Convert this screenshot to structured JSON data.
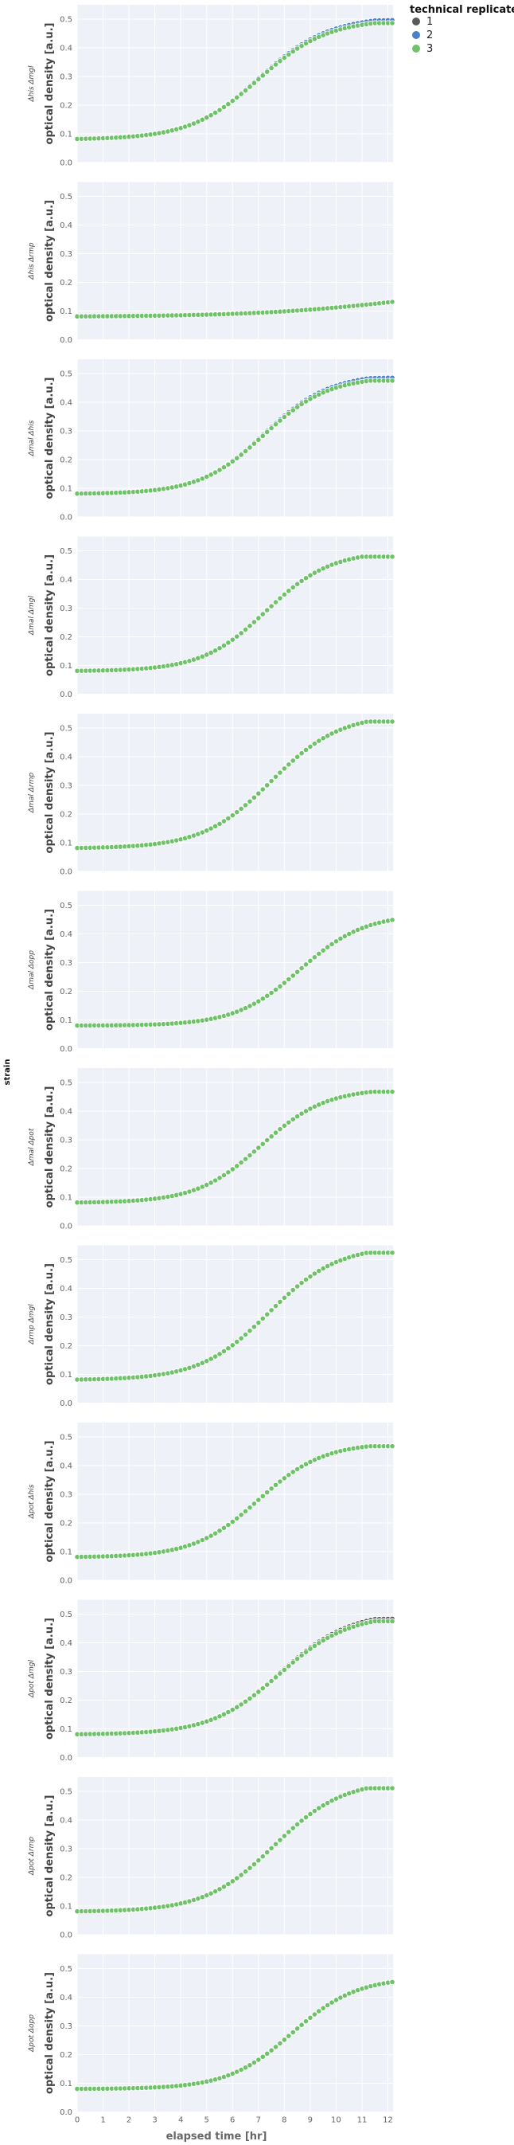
{
  "chart_data": {
    "type": "scatter",
    "xlabel": "elapsed time [hr]",
    "ylabel": "optical density [a.u.]",
    "row_facet_label": "strain",
    "xlim": [
      0,
      12.2
    ],
    "ylim": [
      0,
      0.55
    ],
    "x_ticks": [
      0,
      1,
      2,
      3,
      4,
      5,
      6,
      7,
      8,
      9,
      10,
      11,
      12
    ],
    "y_ticks": [
      0.0,
      0.1,
      0.2,
      0.3,
      0.4,
      0.5
    ],
    "y_tick_labels": [
      "0.0",
      "0.1",
      "0.2",
      "0.3",
      "0.4",
      "0.5"
    ],
    "grid": true,
    "legend": {
      "title": "technical replicate",
      "position": "top-right",
      "entries": [
        {
          "name": "1",
          "color": "#5a5a5a"
        },
        {
          "name": "2",
          "color": "#4a7fc9"
        },
        {
          "name": "3",
          "color": "#6fc26a"
        }
      ]
    },
    "sampling_interval_hr": 0.1667,
    "panels": [
      {
        "strain": "Δhis Δmgl",
        "params": {
          "base": 0.08,
          "K": 0.5,
          "mid": 7.0,
          "rate": 0.75,
          "plateau_start": 11.5
        },
        "replicate_offsets": [
          0.005,
          0.01,
          0.0
        ]
      },
      {
        "strain": "Δhis Δrmp",
        "params": {
          "base": 0.08,
          "K": 0.19,
          "mid": 12.5,
          "rate": 0.35,
          "plateau_start": 13.0
        },
        "replicate_offsets": [
          0.0,
          0.0,
          0.0
        ]
      },
      {
        "strain": "Δmal Δhis",
        "params": {
          "base": 0.08,
          "K": 0.49,
          "mid": 7.2,
          "rate": 0.8,
          "plateau_start": 11.3
        },
        "replicate_offsets": [
          0.005,
          0.01,
          0.0
        ]
      },
      {
        "strain": "Δmal Δmgl",
        "params": {
          "base": 0.08,
          "K": 0.5,
          "mid": 7.3,
          "rate": 0.8,
          "plateau_start": 11.0
        },
        "replicate_offsets": [
          0.0,
          0.0,
          0.0
        ]
      },
      {
        "strain": "Δmal Δrmp",
        "params": {
          "base": 0.08,
          "K": 0.55,
          "mid": 7.5,
          "rate": 0.75,
          "plateau_start": 11.2
        },
        "replicate_offsets": [
          0.0,
          0.0,
          0.0
        ]
      },
      {
        "strain": "Δmal Δopp",
        "params": {
          "base": 0.08,
          "K": 0.47,
          "mid": 8.6,
          "rate": 0.8,
          "plateau_start": 13.0
        },
        "replicate_offsets": [
          0.0,
          0.0,
          0.0
        ]
      },
      {
        "strain": "Δmal Δpot",
        "params": {
          "base": 0.08,
          "K": 0.48,
          "mid": 7.1,
          "rate": 0.8,
          "plateau_start": 11.4
        },
        "replicate_offsets": [
          0.0,
          0.0,
          0.0
        ]
      },
      {
        "strain": "Δrmp Δmgl",
        "params": {
          "base": 0.08,
          "K": 0.55,
          "mid": 7.4,
          "rate": 0.75,
          "plateau_start": 11.2
        },
        "replicate_offsets": [
          0.0,
          0.0,
          0.0
        ]
      },
      {
        "strain": "Δpot Δhis",
        "params": {
          "base": 0.08,
          "K": 0.48,
          "mid": 7.0,
          "rate": 0.8,
          "plateau_start": 11.3
        },
        "replicate_offsets": [
          0.0,
          0.0,
          0.0
        ]
      },
      {
        "strain": "Δpot Δmgl",
        "params": {
          "base": 0.08,
          "K": 0.5,
          "mid": 7.8,
          "rate": 0.75,
          "plateau_start": 11.5
        },
        "replicate_offsets": [
          0.008,
          0.0,
          0.0
        ]
      },
      {
        "strain": "Δpot Δrmp",
        "params": {
          "base": 0.08,
          "K": 0.54,
          "mid": 7.6,
          "rate": 0.75,
          "plateau_start": 11.2
        },
        "replicate_offsets": [
          0.0,
          0.0,
          0.0
        ]
      },
      {
        "strain": "Δpot Δopp",
        "params": {
          "base": 0.08,
          "K": 0.47,
          "mid": 8.3,
          "rate": 0.8,
          "plateau_start": 13.0
        },
        "replicate_offsets": [
          0.0,
          0.0,
          0.0
        ]
      }
    ]
  }
}
